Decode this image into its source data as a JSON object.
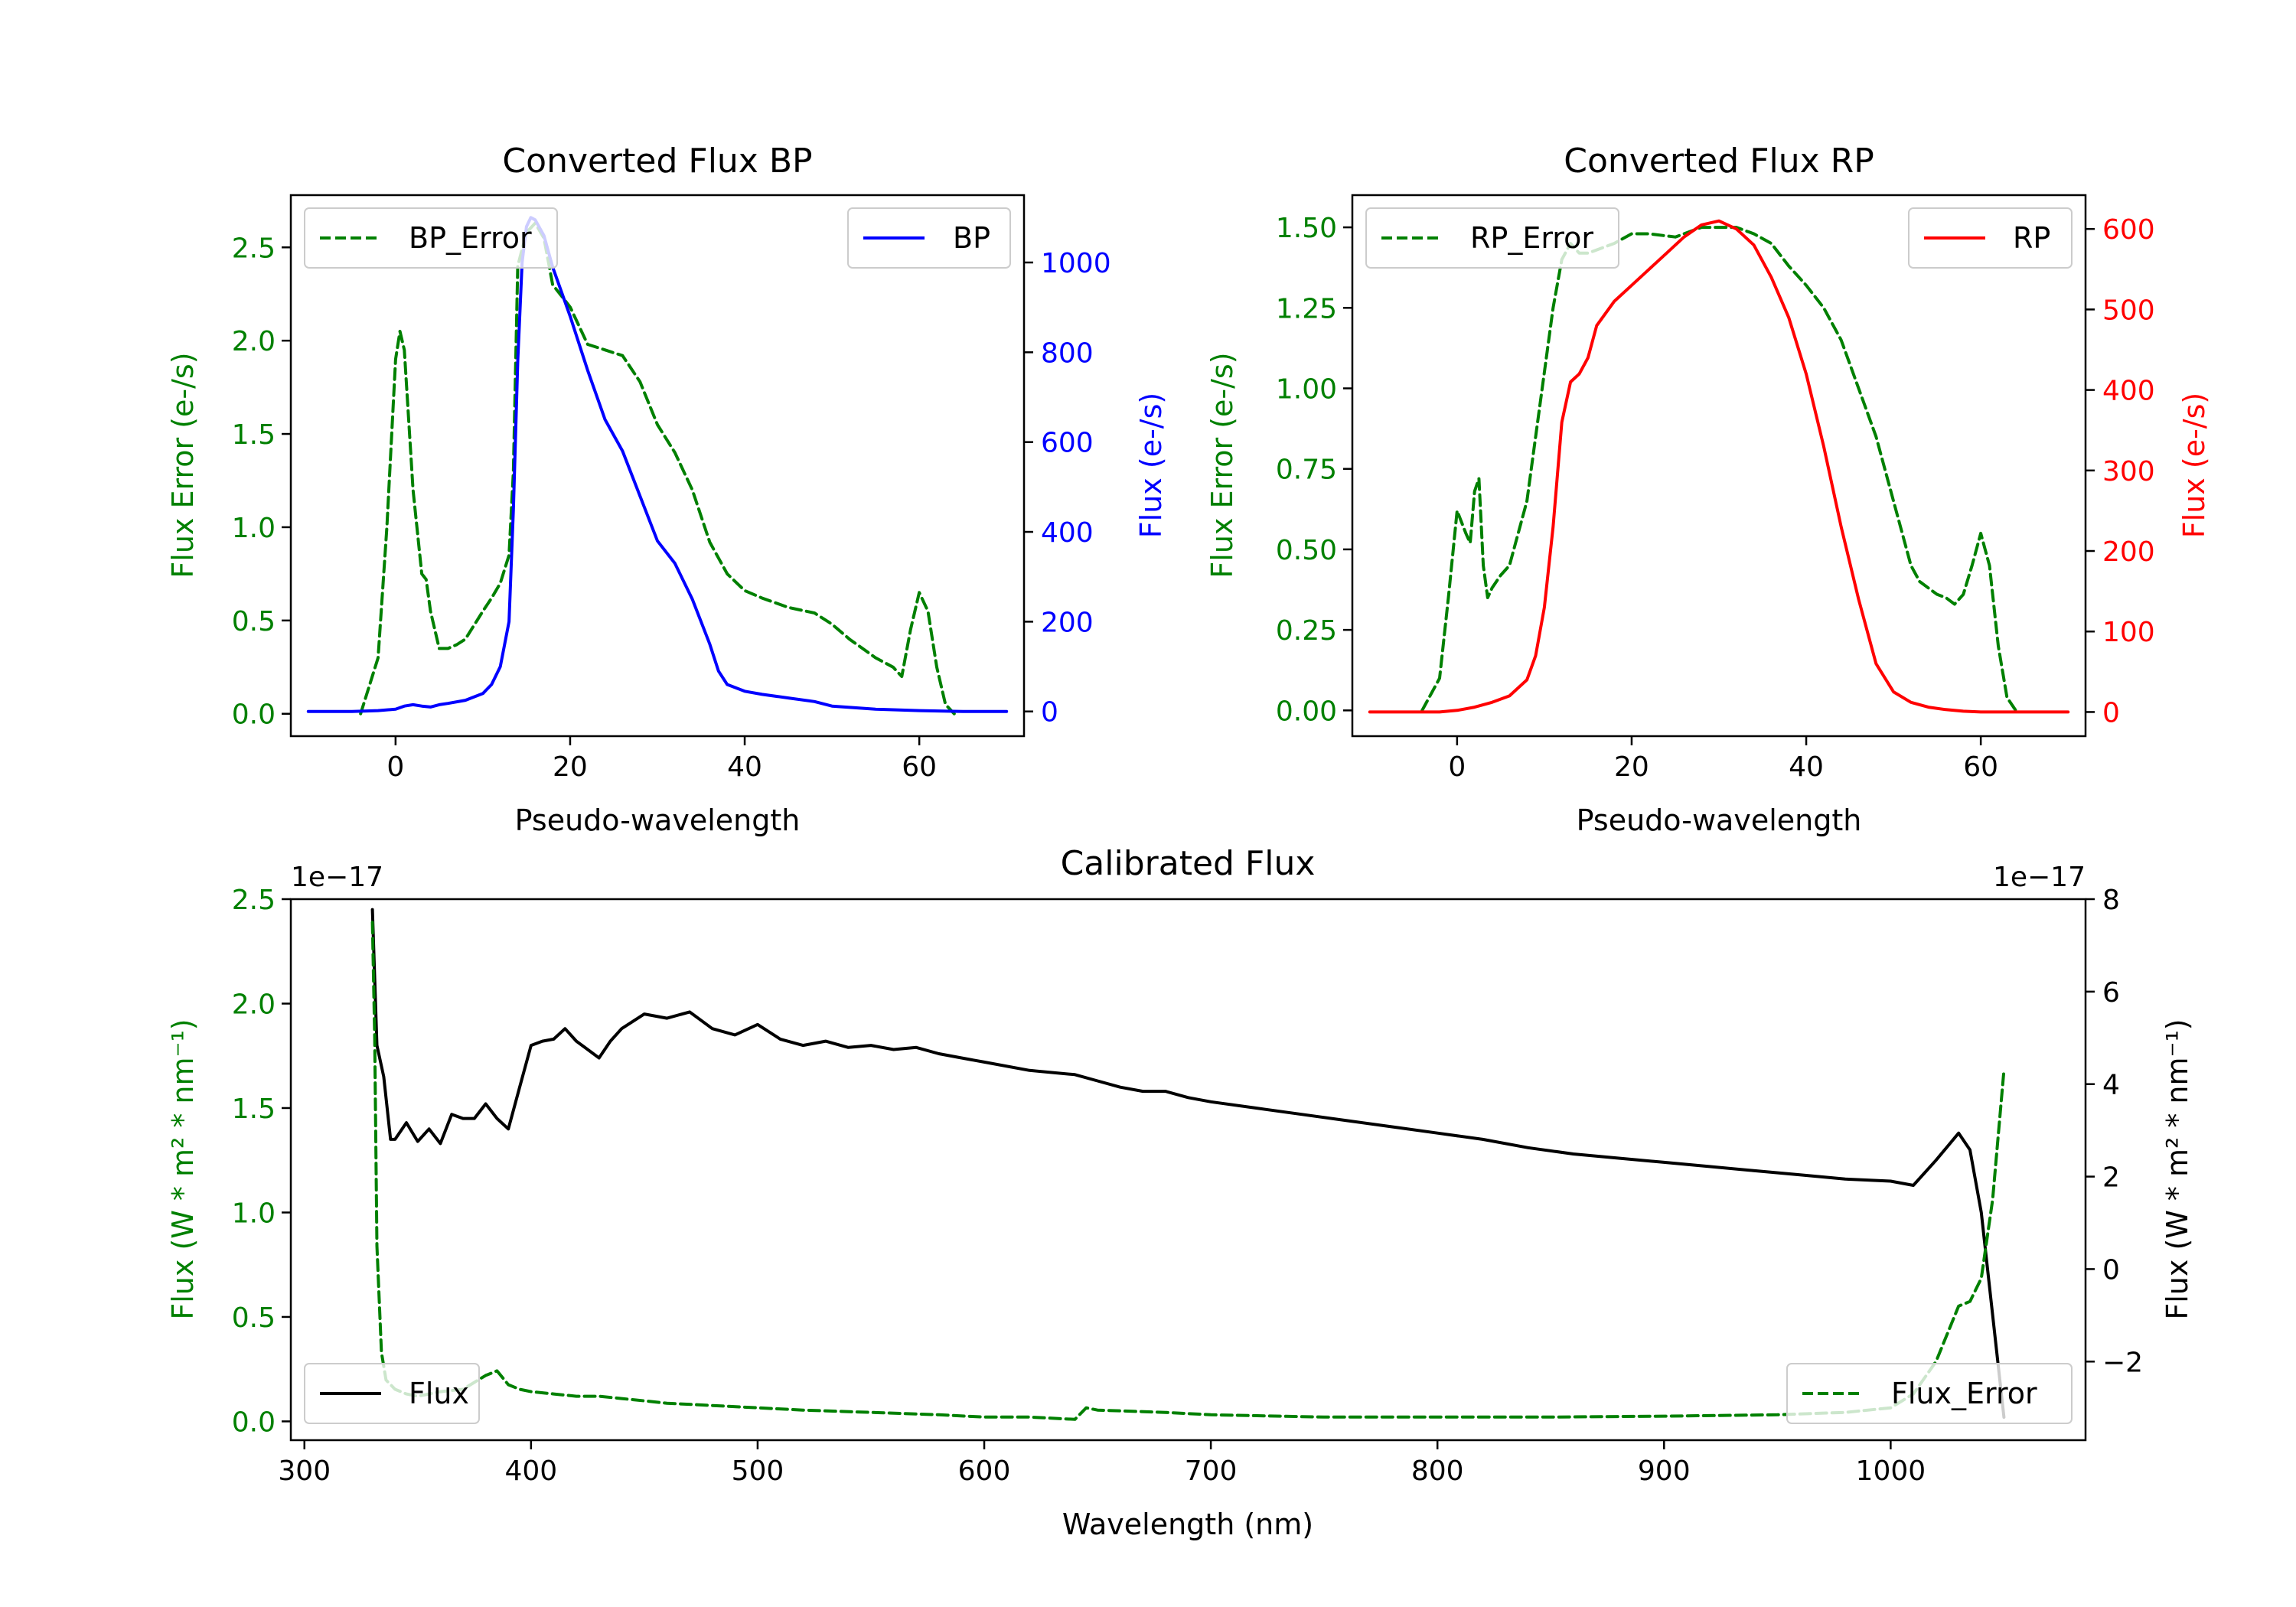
{
  "colors": {
    "error": "#008000",
    "bp": "#0000ff",
    "rp": "#ff0000",
    "flux": "#000000",
    "axis": "#000000"
  },
  "chart_data": [
    {
      "id": "bp",
      "type": "line",
      "title": "Converted Flux BP",
      "xlabel": "Pseudo-wavelength",
      "ylabel_left": "Flux Error (e-/s)",
      "ylabel_right": "Flux (e-/s)",
      "xlim": [
        -12,
        72
      ],
      "ylim_left": [
        -0.12,
        2.78
      ],
      "ylim_right": [
        -55,
        1150
      ],
      "xticks": [
        0,
        20,
        40,
        60
      ],
      "yticks_left": [
        "0.0",
        "0.5",
        "1.0",
        "1.5",
        "2.0",
        "2.5"
      ],
      "yticks_right": [
        "0",
        "200",
        "400",
        "600",
        "800",
        "1000"
      ],
      "legend_left": "BP_Error",
      "legend_right": "BP",
      "series": [
        {
          "name": "BP_Error",
          "axis": "left",
          "style": "dashed",
          "color_key": "error",
          "x": [
            -4,
            -2,
            -1,
            0,
            0.5,
            1,
            2,
            3,
            3.5,
            4,
            5,
            6,
            7,
            8,
            10,
            11,
            12,
            13,
            13.5,
            14,
            15,
            16,
            17,
            18,
            20,
            22,
            24,
            26,
            28,
            30,
            32,
            34,
            36,
            38,
            40,
            42,
            45,
            48,
            50,
            52,
            55,
            57,
            58,
            59,
            60,
            61,
            62,
            63,
            64
          ],
          "y": [
            0.0,
            0.3,
            1.0,
            1.9,
            2.05,
            1.95,
            1.2,
            0.75,
            0.72,
            0.55,
            0.35,
            0.35,
            0.37,
            0.4,
            0.55,
            0.62,
            0.7,
            0.85,
            1.3,
            2.4,
            2.58,
            2.63,
            2.55,
            2.3,
            2.18,
            1.98,
            1.95,
            1.92,
            1.78,
            1.55,
            1.4,
            1.2,
            0.92,
            0.75,
            0.66,
            0.62,
            0.57,
            0.54,
            0.48,
            0.4,
            0.3,
            0.25,
            0.2,
            0.45,
            0.65,
            0.55,
            0.25,
            0.05,
            0.0
          ]
        },
        {
          "name": "BP",
          "axis": "right",
          "style": "solid",
          "color_key": "bp",
          "x": [
            -10,
            -5,
            -2,
            0,
            1,
            2,
            3,
            4,
            5,
            6,
            8,
            10,
            11,
            12,
            13,
            13.5,
            14,
            14.5,
            15,
            15.5,
            16,
            17,
            18,
            20,
            22,
            24,
            26,
            28,
            30,
            32,
            34,
            36,
            37,
            38,
            40,
            42,
            45,
            48,
            50,
            55,
            60,
            65,
            70
          ],
          "y": [
            0,
            0,
            2,
            5,
            12,
            15,
            12,
            10,
            15,
            18,
            25,
            40,
            60,
            100,
            200,
            450,
            780,
            1000,
            1080,
            1100,
            1095,
            1060,
            990,
            880,
            760,
            650,
            580,
            480,
            380,
            330,
            250,
            150,
            90,
            60,
            45,
            38,
            30,
            22,
            12,
            5,
            2,
            0,
            0
          ]
        }
      ]
    },
    {
      "id": "rp",
      "type": "line",
      "title": "Converted Flux RP",
      "xlabel": "Pseudo-wavelength",
      "ylabel_left": "Flux Error (e-/s)",
      "ylabel_right": "Flux (e-/s)",
      "xlim": [
        -12,
        72
      ],
      "ylim_left": [
        -0.08,
        1.6
      ],
      "ylim_right": [
        -30,
        642
      ],
      "xticks": [
        0,
        20,
        40,
        60
      ],
      "yticks_left": [
        "0.00",
        "0.25",
        "0.50",
        "0.75",
        "1.00",
        "1.25",
        "1.50"
      ],
      "yticks_right": [
        "0",
        "100",
        "200",
        "300",
        "400",
        "500",
        "600"
      ],
      "legend_left": "RP_Error",
      "legend_right": "RP",
      "series": [
        {
          "name": "RP_Error",
          "axis": "left",
          "style": "dashed",
          "color_key": "error",
          "x": [
            -4,
            -2,
            -1,
            0,
            1,
            1.5,
            2,
            2.5,
            3,
            3.5,
            4,
            5,
            6,
            7,
            8,
            9,
            10,
            11,
            12,
            13,
            14,
            15,
            18,
            20,
            22,
            25,
            28,
            30,
            32,
            34,
            36,
            38,
            40,
            42,
            44,
            46,
            48,
            50,
            52,
            53,
            55,
            56,
            57,
            58,
            59,
            60,
            61,
            62,
            63,
            64
          ],
          "y": [
            0.0,
            0.1,
            0.35,
            0.62,
            0.55,
            0.52,
            0.68,
            0.72,
            0.45,
            0.35,
            0.38,
            0.42,
            0.45,
            0.55,
            0.65,
            0.85,
            1.05,
            1.25,
            1.4,
            1.45,
            1.42,
            1.42,
            1.45,
            1.48,
            1.48,
            1.47,
            1.5,
            1.5,
            1.5,
            1.48,
            1.45,
            1.38,
            1.32,
            1.25,
            1.15,
            1.0,
            0.85,
            0.65,
            0.45,
            0.4,
            0.36,
            0.35,
            0.33,
            0.36,
            0.45,
            0.55,
            0.45,
            0.2,
            0.04,
            0.0
          ]
        },
        {
          "name": "RP",
          "axis": "right",
          "style": "solid",
          "color_key": "rp",
          "x": [
            -10,
            -5,
            -2,
            0,
            2,
            4,
            6,
            8,
            9,
            10,
            11,
            12,
            13,
            14,
            15,
            16,
            18,
            20,
            22,
            24,
            26,
            28,
            30,
            32,
            34,
            36,
            38,
            40,
            42,
            44,
            46,
            48,
            50,
            52,
            54,
            56,
            58,
            60,
            65,
            70
          ],
          "y": [
            0,
            0,
            0,
            2,
            6,
            12,
            20,
            40,
            70,
            130,
            230,
            360,
            410,
            420,
            440,
            480,
            510,
            530,
            550,
            570,
            590,
            605,
            610,
            600,
            580,
            540,
            490,
            420,
            330,
            230,
            140,
            60,
            25,
            12,
            6,
            3,
            1,
            0,
            0,
            0
          ]
        }
      ]
    },
    {
      "id": "calibrated",
      "type": "line",
      "title": "Calibrated Flux",
      "xlabel": "Wavelength (nm)",
      "ylabel_left": "Flux (W * m² * nm⁻¹)",
      "ylabel_right": "Flux (W * m² * nm⁻¹)",
      "offset_left": "1e−17",
      "offset_right": "1e−17",
      "xlim": [
        294,
        1086
      ],
      "ylim_left": [
        -0.09,
        2.5
      ],
      "ylim_right": [
        -3.7,
        8.0
      ],
      "xticks": [
        300,
        400,
        500,
        600,
        700,
        800,
        900,
        1000
      ],
      "yticks_left": [
        "0.0",
        "0.5",
        "1.0",
        "1.5",
        "2.0",
        "2.5"
      ],
      "yticks_right": [
        "−2",
        "0",
        "2",
        "4",
        "6",
        "8"
      ],
      "legend_left": "Flux",
      "legend_right": "Flux_Error",
      "series": [
        {
          "name": "Flux",
          "axis": "left",
          "style": "solid",
          "color_key": "flux",
          "x": [
            330,
            332,
            335,
            338,
            340,
            345,
            350,
            355,
            360,
            365,
            370,
            375,
            380,
            385,
            390,
            395,
            400,
            405,
            410,
            415,
            420,
            425,
            430,
            435,
            440,
            450,
            460,
            470,
            480,
            490,
            500,
            510,
            520,
            530,
            540,
            550,
            560,
            570,
            580,
            590,
            600,
            620,
            640,
            650,
            660,
            670,
            680,
            690,
            700,
            720,
            740,
            760,
            780,
            800,
            820,
            840,
            860,
            880,
            900,
            920,
            940,
            960,
            980,
            1000,
            1010,
            1020,
            1030,
            1035,
            1040,
            1050
          ],
          "y": [
            2.45,
            1.8,
            1.65,
            1.35,
            1.35,
            1.43,
            1.34,
            1.4,
            1.33,
            1.47,
            1.45,
            1.45,
            1.52,
            1.45,
            1.4,
            1.6,
            1.8,
            1.82,
            1.83,
            1.88,
            1.82,
            1.78,
            1.74,
            1.82,
            1.88,
            1.95,
            1.93,
            1.96,
            1.88,
            1.85,
            1.9,
            1.83,
            1.8,
            1.82,
            1.79,
            1.8,
            1.78,
            1.79,
            1.76,
            1.74,
            1.72,
            1.68,
            1.66,
            1.63,
            1.6,
            1.58,
            1.58,
            1.55,
            1.53,
            1.5,
            1.47,
            1.44,
            1.41,
            1.38,
            1.35,
            1.31,
            1.28,
            1.26,
            1.24,
            1.22,
            1.2,
            1.18,
            1.16,
            1.15,
            1.13,
            1.25,
            1.38,
            1.3,
            1.0,
            0.02
          ]
        },
        {
          "name": "Flux_Error",
          "axis": "right",
          "style": "dashed",
          "color_key": "error",
          "x": [
            330,
            331,
            332,
            334,
            336,
            340,
            345,
            350,
            360,
            370,
            380,
            385,
            390,
            395,
            400,
            410,
            420,
            430,
            440,
            450,
            460,
            480,
            500,
            520,
            550,
            580,
            600,
            620,
            640,
            645,
            650,
            680,
            700,
            750,
            800,
            850,
            900,
            950,
            980,
            1000,
            1010,
            1020,
            1025,
            1030,
            1035,
            1040,
            1045,
            1050
          ],
          "y": [
            7.5,
            5.0,
            0.5,
            -1.8,
            -2.4,
            -2.6,
            -2.7,
            -2.75,
            -2.65,
            -2.6,
            -2.3,
            -2.2,
            -2.5,
            -2.6,
            -2.65,
            -2.7,
            -2.75,
            -2.75,
            -2.8,
            -2.85,
            -2.9,
            -2.95,
            -3.0,
            -3.05,
            -3.1,
            -3.15,
            -3.2,
            -3.2,
            -3.25,
            -3.0,
            -3.05,
            -3.1,
            -3.15,
            -3.2,
            -3.2,
            -3.2,
            -3.18,
            -3.15,
            -3.1,
            -3.0,
            -2.7,
            -2.0,
            -1.4,
            -0.8,
            -0.7,
            -0.2,
            1.5,
            4.3
          ]
        }
      ]
    }
  ]
}
